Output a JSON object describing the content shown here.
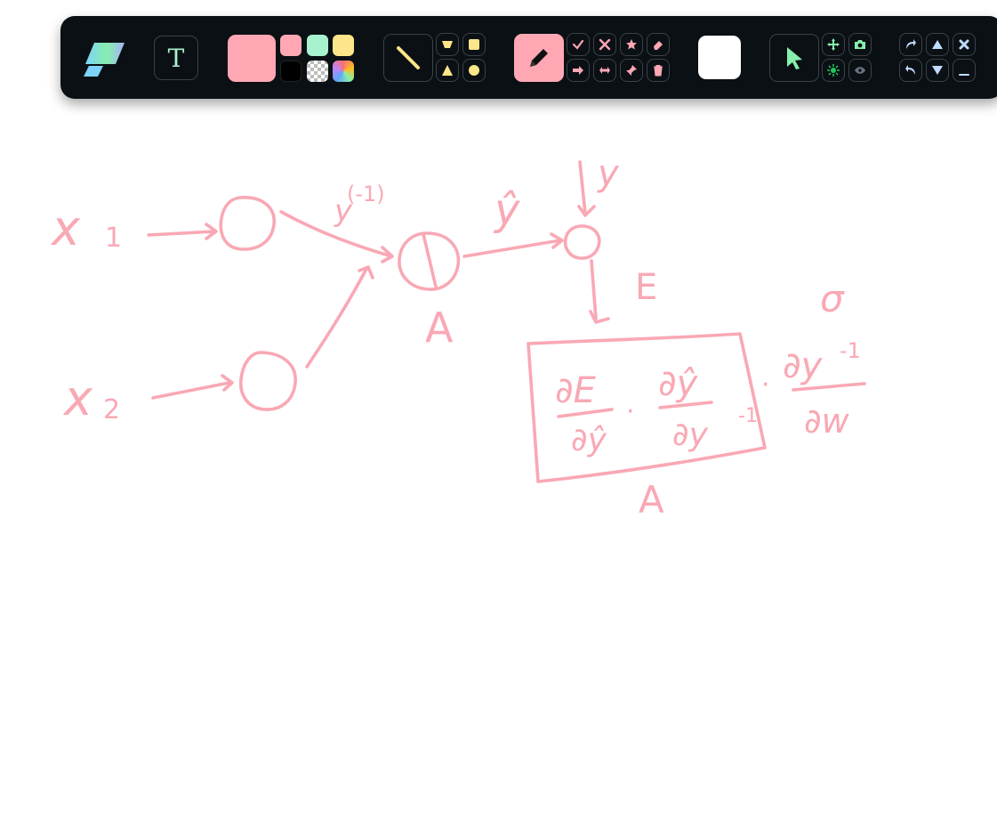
{
  "app": {
    "name": "whiteboard-drawing-app"
  },
  "colors": {
    "toolbar_bg": "#0b1014",
    "ink": "#f9a8b4",
    "active_pink": "#ffa8b4",
    "mint": "#a7f3d0",
    "butter": "#fde68a",
    "black": "#000000",
    "fill_white": "#ffffff",
    "select_green": "#86efac",
    "nav_blue": "#bfdbfe"
  },
  "toolbar": {
    "text_tool": {
      "label": "T",
      "icon": "text-icon"
    },
    "primary_color": {
      "value": "#ffa8b4"
    },
    "palette": [
      {
        "name": "pink",
        "color": "#ffa8b4"
      },
      {
        "name": "mint",
        "color": "#a7f3d0"
      },
      {
        "name": "butter",
        "color": "#fde68a"
      },
      {
        "name": "black",
        "color": "#000000"
      },
      {
        "name": "transparent",
        "color": "checker"
      },
      {
        "name": "rainbow",
        "color": "gradient"
      }
    ],
    "shapes": [
      "line-icon",
      "trapezoid-icon",
      "square-icon",
      "triangle-icon",
      "circle-icon"
    ],
    "pen_tools": [
      "pen-icon",
      "check-icon",
      "cross-icon",
      "star-icon",
      "eraser-icon",
      "arrow-right-icon",
      "double-arrow-icon",
      "pin-icon",
      "trash-icon"
    ],
    "fill_color": {
      "value": "#ffffff"
    },
    "select_tools": [
      "pointer-icon",
      "move-icon",
      "camera-icon",
      "burst-icon",
      "eye-icon"
    ],
    "nav_tools": [
      "redo-icon",
      "up-icon",
      "close-icon",
      "undo-icon",
      "down-icon",
      "minimize-icon"
    ]
  },
  "drawing": {
    "x1_label": "x",
    "x1_sub": "1",
    "x2_label": "x",
    "x2_sub": "2",
    "edge_label": "y",
    "edge_label_sup": "(-1)",
    "yhat_label": "ŷ",
    "y_label": "y",
    "error_label": "E",
    "node_a_label": "A",
    "sigma_label": "σ",
    "box_label": "A",
    "formula": {
      "term1_num": "∂E",
      "term1_den": "∂ŷ",
      "term2_num": "∂ŷ",
      "term2_den": "∂y",
      "term2_den_sup": "-1",
      "term3_num": "∂y",
      "term3_num_sup": "-1",
      "term3_den": "∂w",
      "dot": "·"
    }
  }
}
